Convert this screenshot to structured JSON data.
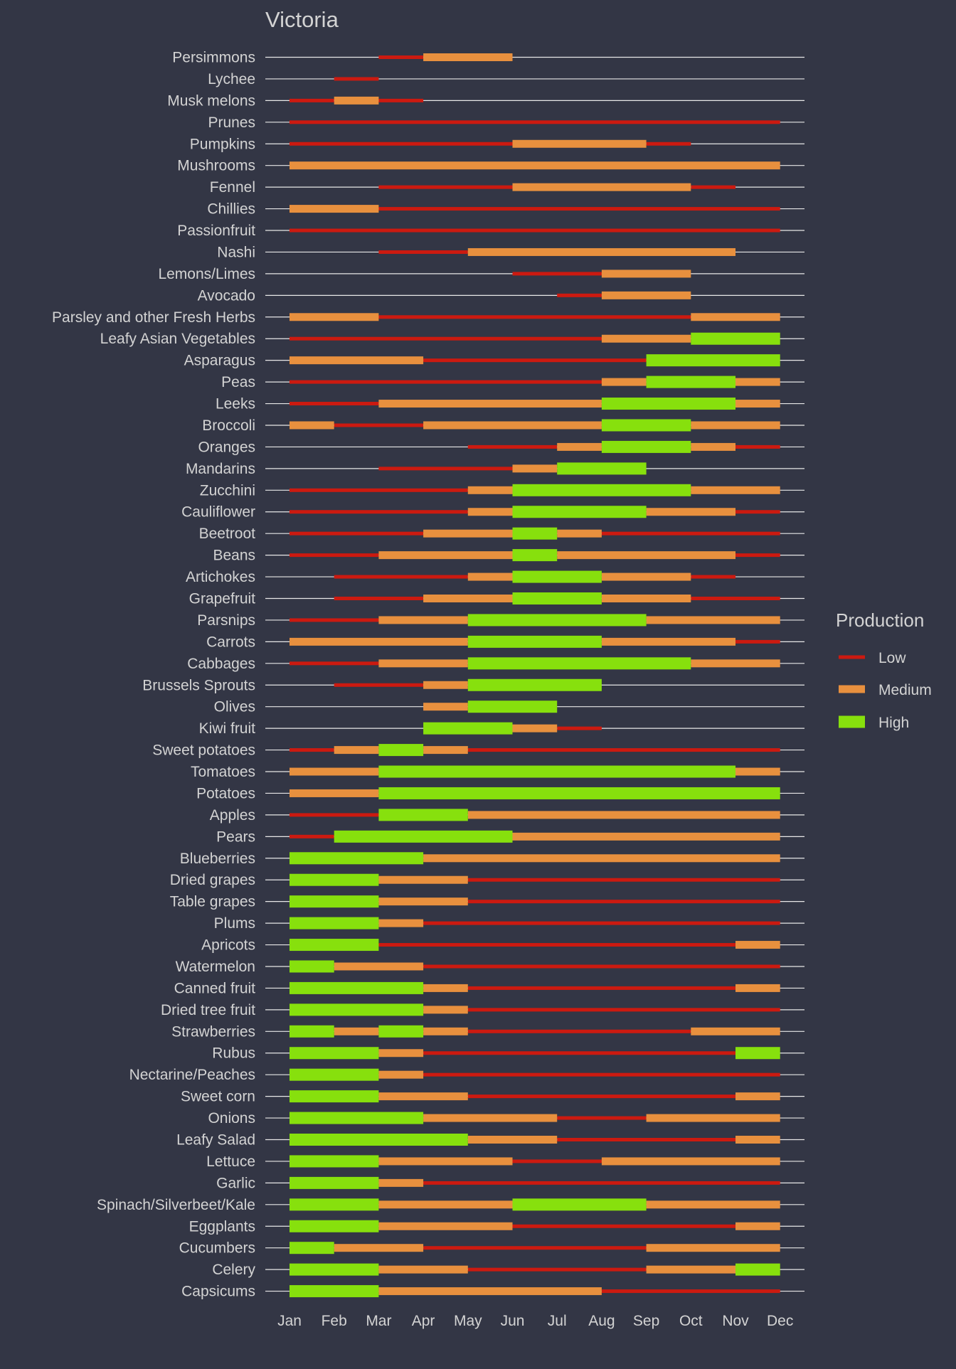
{
  "chart_data": {
    "type": "gantt",
    "title": "Victoria",
    "x_ticks": [
      "Jan",
      "Feb",
      "Mar",
      "Apr",
      "May",
      "Jun",
      "Jul",
      "Aug",
      "Sep",
      "Oct",
      "Nov",
      "Dec"
    ],
    "legend": {
      "title": "Production",
      "placement": "right",
      "entries": [
        {
          "label": "Low",
          "color": "#cc1a10"
        },
        {
          "label": "Medium",
          "color": "#e8903e"
        },
        {
          "label": "High",
          "color": "#87e00d"
        }
      ]
    },
    "colors": {
      "background": "#333645",
      "gridline": "#e8e8e8",
      "text": "#d3d3d3",
      "Low": "#cc1a10",
      "Medium": "#e8903e",
      "High": "#87e00d"
    },
    "items": [
      {
        "name": "Persimmons",
        "segments": [
          [
            "Low",
            3,
            4
          ],
          [
            "Medium",
            4,
            6
          ]
        ]
      },
      {
        "name": "Lychee",
        "segments": [
          [
            "Low",
            2,
            3
          ]
        ]
      },
      {
        "name": "Musk melons",
        "segments": [
          [
            "Low",
            1,
            2
          ],
          [
            "Medium",
            2,
            3
          ],
          [
            "Low",
            3,
            4
          ]
        ]
      },
      {
        "name": "Prunes",
        "segments": [
          [
            "Low",
            1,
            12
          ]
        ]
      },
      {
        "name": "Pumpkins",
        "segments": [
          [
            "Low",
            1,
            6
          ],
          [
            "Medium",
            6,
            9
          ],
          [
            "Low",
            9,
            10
          ]
        ]
      },
      {
        "name": "Mushrooms",
        "segments": [
          [
            "Medium",
            1,
            12
          ]
        ]
      },
      {
        "name": "Fennel",
        "segments": [
          [
            "Low",
            3,
            6
          ],
          [
            "Medium",
            6,
            10
          ],
          [
            "Low",
            10,
            11
          ]
        ]
      },
      {
        "name": "Chillies",
        "segments": [
          [
            "Medium",
            1,
            3
          ],
          [
            "Low",
            3,
            12
          ]
        ]
      },
      {
        "name": "Passionfruit",
        "segments": [
          [
            "Low",
            1,
            12
          ]
        ]
      },
      {
        "name": "Nashi",
        "segments": [
          [
            "Low",
            3,
            5
          ],
          [
            "Medium",
            5,
            11
          ]
        ]
      },
      {
        "name": "Lemons/Limes",
        "segments": [
          [
            "Low",
            6,
            8
          ],
          [
            "Medium",
            8,
            10
          ]
        ]
      },
      {
        "name": "Avocado",
        "segments": [
          [
            "Low",
            7,
            8
          ],
          [
            "Medium",
            8,
            10
          ]
        ]
      },
      {
        "name": "Parsley and other Fresh Herbs",
        "segments": [
          [
            "Medium",
            1,
            3
          ],
          [
            "Low",
            3,
            10
          ],
          [
            "Medium",
            10,
            12
          ]
        ]
      },
      {
        "name": "Leafy Asian Vegetables",
        "segments": [
          [
            "Low",
            1,
            8
          ],
          [
            "Medium",
            8,
            10
          ],
          [
            "High",
            10,
            12
          ]
        ]
      },
      {
        "name": "Asparagus",
        "segments": [
          [
            "Medium",
            1,
            4
          ],
          [
            "Low",
            4,
            9
          ],
          [
            "High",
            9,
            12
          ]
        ]
      },
      {
        "name": "Peas",
        "segments": [
          [
            "Low",
            1,
            8
          ],
          [
            "Medium",
            8,
            9
          ],
          [
            "High",
            9,
            11
          ],
          [
            "Medium",
            11,
            12
          ]
        ]
      },
      {
        "name": "Leeks",
        "segments": [
          [
            "Low",
            1,
            3
          ],
          [
            "Medium",
            3,
            8
          ],
          [
            "High",
            8,
            11
          ],
          [
            "Medium",
            11,
            12
          ]
        ]
      },
      {
        "name": "Broccoli",
        "segments": [
          [
            "Medium",
            1,
            2
          ],
          [
            "Low",
            2,
            4
          ],
          [
            "Medium",
            4,
            8
          ],
          [
            "High",
            8,
            10
          ],
          [
            "Medium",
            10,
            12
          ]
        ]
      },
      {
        "name": "Oranges",
        "segments": [
          [
            "Low",
            5,
            7
          ],
          [
            "Medium",
            7,
            8
          ],
          [
            "High",
            8,
            10
          ],
          [
            "Medium",
            10,
            11
          ],
          [
            "Low",
            11,
            12
          ]
        ]
      },
      {
        "name": "Mandarins",
        "segments": [
          [
            "Low",
            3,
            6
          ],
          [
            "Medium",
            6,
            7
          ],
          [
            "High",
            7,
            9
          ]
        ]
      },
      {
        "name": "Zucchini",
        "segments": [
          [
            "Low",
            1,
            5
          ],
          [
            "Medium",
            5,
            6
          ],
          [
            "High",
            6,
            10
          ],
          [
            "Medium",
            10,
            12
          ]
        ]
      },
      {
        "name": "Cauliflower",
        "segments": [
          [
            "Low",
            1,
            5
          ],
          [
            "Medium",
            5,
            6
          ],
          [
            "High",
            6,
            9
          ],
          [
            "Medium",
            9,
            11
          ],
          [
            "Low",
            11,
            12
          ]
        ]
      },
      {
        "name": "Beetroot",
        "segments": [
          [
            "Low",
            1,
            4
          ],
          [
            "Medium",
            4,
            6
          ],
          [
            "High",
            6,
            7
          ],
          [
            "Medium",
            7,
            8
          ],
          [
            "Low",
            8,
            12
          ]
        ]
      },
      {
        "name": "Beans",
        "segments": [
          [
            "Low",
            1,
            3
          ],
          [
            "Medium",
            3,
            6
          ],
          [
            "High",
            6,
            7
          ],
          [
            "Medium",
            7,
            11
          ],
          [
            "Low",
            11,
            12
          ]
        ]
      },
      {
        "name": "Artichokes",
        "segments": [
          [
            "Low",
            2,
            5
          ],
          [
            "Medium",
            5,
            6
          ],
          [
            "High",
            6,
            8
          ],
          [
            "Medium",
            8,
            10
          ],
          [
            "Low",
            10,
            11
          ]
        ]
      },
      {
        "name": "Grapefruit",
        "segments": [
          [
            "Low",
            2,
            4
          ],
          [
            "Medium",
            4,
            6
          ],
          [
            "High",
            6,
            8
          ],
          [
            "Medium",
            8,
            10
          ],
          [
            "Low",
            10,
            12
          ]
        ]
      },
      {
        "name": "Parsnips",
        "segments": [
          [
            "Low",
            1,
            3
          ],
          [
            "Medium",
            3,
            5
          ],
          [
            "High",
            5,
            9
          ],
          [
            "Medium",
            9,
            12
          ]
        ]
      },
      {
        "name": "Carrots",
        "segments": [
          [
            "Medium",
            1,
            5
          ],
          [
            "High",
            5,
            8
          ],
          [
            "Medium",
            8,
            11
          ],
          [
            "Low",
            11,
            12
          ]
        ]
      },
      {
        "name": "Cabbages",
        "segments": [
          [
            "Low",
            1,
            3
          ],
          [
            "Medium",
            3,
            5
          ],
          [
            "High",
            5,
            10
          ],
          [
            "Medium",
            10,
            12
          ]
        ]
      },
      {
        "name": "Brussels Sprouts",
        "segments": [
          [
            "Low",
            2,
            4
          ],
          [
            "Medium",
            4,
            5
          ],
          [
            "High",
            5,
            8
          ]
        ]
      },
      {
        "name": "Olives",
        "segments": [
          [
            "Medium",
            4,
            5
          ],
          [
            "High",
            5,
            7
          ]
        ]
      },
      {
        "name": "Kiwi fruit",
        "segments": [
          [
            "High",
            4,
            6
          ],
          [
            "Medium",
            6,
            7
          ],
          [
            "Low",
            7,
            8
          ]
        ]
      },
      {
        "name": "Sweet potatoes",
        "segments": [
          [
            "Low",
            1,
            2
          ],
          [
            "Medium",
            2,
            3
          ],
          [
            "High",
            3,
            4
          ],
          [
            "Medium",
            4,
            5
          ],
          [
            "Low",
            5,
            12
          ]
        ]
      },
      {
        "name": "Tomatoes",
        "segments": [
          [
            "Medium",
            1,
            3
          ],
          [
            "High",
            3,
            11
          ],
          [
            "Medium",
            11,
            12
          ]
        ]
      },
      {
        "name": "Potatoes",
        "segments": [
          [
            "Medium",
            1,
            3
          ],
          [
            "High",
            3,
            12
          ]
        ]
      },
      {
        "name": "Apples",
        "segments": [
          [
            "Low",
            1,
            3
          ],
          [
            "High",
            3,
            5
          ],
          [
            "Medium",
            5,
            12
          ]
        ]
      },
      {
        "name": "Pears",
        "segments": [
          [
            "Low",
            1,
            2
          ],
          [
            "High",
            2,
            6
          ],
          [
            "Medium",
            6,
            12
          ]
        ]
      },
      {
        "name": "Blueberries",
        "segments": [
          [
            "High",
            1,
            4
          ],
          [
            "Medium",
            4,
            12
          ]
        ]
      },
      {
        "name": "Dried grapes",
        "segments": [
          [
            "High",
            1,
            3
          ],
          [
            "Medium",
            3,
            5
          ],
          [
            "Low",
            5,
            12
          ]
        ]
      },
      {
        "name": "Table grapes",
        "segments": [
          [
            "High",
            1,
            3
          ],
          [
            "Medium",
            3,
            5
          ],
          [
            "Low",
            5,
            12
          ]
        ]
      },
      {
        "name": "Plums",
        "segments": [
          [
            "High",
            1,
            3
          ],
          [
            "Medium",
            3,
            4
          ],
          [
            "Low",
            4,
            12
          ]
        ]
      },
      {
        "name": "Apricots",
        "segments": [
          [
            "High",
            1,
            3
          ],
          [
            "Low",
            3,
            11
          ],
          [
            "Medium",
            11,
            12
          ]
        ]
      },
      {
        "name": "Watermelon",
        "segments": [
          [
            "High",
            1,
            2
          ],
          [
            "Medium",
            2,
            4
          ],
          [
            "Low",
            4,
            12
          ]
        ]
      },
      {
        "name": "Canned fruit",
        "segments": [
          [
            "High",
            1,
            4
          ],
          [
            "Medium",
            4,
            5
          ],
          [
            "Low",
            5,
            11
          ],
          [
            "Medium",
            11,
            12
          ]
        ]
      },
      {
        "name": "Dried tree fruit",
        "segments": [
          [
            "High",
            1,
            4
          ],
          [
            "Medium",
            4,
            5
          ],
          [
            "Low",
            5,
            12
          ]
        ]
      },
      {
        "name": "Strawberries",
        "segments": [
          [
            "High",
            1,
            2
          ],
          [
            "Medium",
            2,
            3
          ],
          [
            "High",
            3,
            4
          ],
          [
            "Medium",
            4,
            5
          ],
          [
            "Low",
            5,
            10
          ],
          [
            "Medium",
            10,
            12
          ]
        ]
      },
      {
        "name": "Rubus",
        "segments": [
          [
            "High",
            1,
            3
          ],
          [
            "Medium",
            3,
            4
          ],
          [
            "Low",
            4,
            11
          ],
          [
            "High",
            11,
            12
          ]
        ]
      },
      {
        "name": "Nectarine/Peaches",
        "segments": [
          [
            "High",
            1,
            3
          ],
          [
            "Medium",
            3,
            4
          ],
          [
            "Low",
            4,
            12
          ]
        ]
      },
      {
        "name": "Sweet corn",
        "segments": [
          [
            "High",
            1,
            3
          ],
          [
            "Medium",
            3,
            5
          ],
          [
            "Low",
            5,
            11
          ],
          [
            "Medium",
            11,
            12
          ]
        ]
      },
      {
        "name": "Onions",
        "segments": [
          [
            "High",
            1,
            4
          ],
          [
            "Medium",
            4,
            7
          ],
          [
            "Low",
            7,
            9
          ],
          [
            "Medium",
            9,
            12
          ]
        ]
      },
      {
        "name": "Leafy Salad",
        "segments": [
          [
            "High",
            1,
            5
          ],
          [
            "Medium",
            5,
            7
          ],
          [
            "Low",
            7,
            11
          ],
          [
            "Medium",
            11,
            12
          ]
        ]
      },
      {
        "name": "Lettuce",
        "segments": [
          [
            "High",
            1,
            3
          ],
          [
            "Medium",
            3,
            6
          ],
          [
            "Low",
            6,
            8
          ],
          [
            "Medium",
            8,
            12
          ]
        ]
      },
      {
        "name": "Garlic",
        "segments": [
          [
            "High",
            1,
            3
          ],
          [
            "Medium",
            3,
            4
          ],
          [
            "Low",
            4,
            12
          ]
        ]
      },
      {
        "name": "Spinach/Silverbeet/Kale",
        "segments": [
          [
            "High",
            1,
            3
          ],
          [
            "Medium",
            3,
            6
          ],
          [
            "High",
            6,
            9
          ],
          [
            "Medium",
            9,
            12
          ]
        ]
      },
      {
        "name": "Eggplants",
        "segments": [
          [
            "High",
            1,
            3
          ],
          [
            "Medium",
            3,
            6
          ],
          [
            "Low",
            6,
            11
          ],
          [
            "Medium",
            11,
            12
          ]
        ]
      },
      {
        "name": "Cucumbers",
        "segments": [
          [
            "High",
            1,
            2
          ],
          [
            "Medium",
            2,
            4
          ],
          [
            "Low",
            4,
            9
          ],
          [
            "Medium",
            9,
            12
          ]
        ]
      },
      {
        "name": "Celery",
        "segments": [
          [
            "High",
            1,
            3
          ],
          [
            "Medium",
            3,
            5
          ],
          [
            "Low",
            5,
            9
          ],
          [
            "Medium",
            9,
            11
          ],
          [
            "High",
            11,
            12
          ]
        ]
      },
      {
        "name": "Capsicums",
        "segments": [
          [
            "High",
            1,
            3
          ],
          [
            "Medium",
            3,
            8
          ],
          [
            "Low",
            8,
            12
          ]
        ]
      }
    ]
  }
}
